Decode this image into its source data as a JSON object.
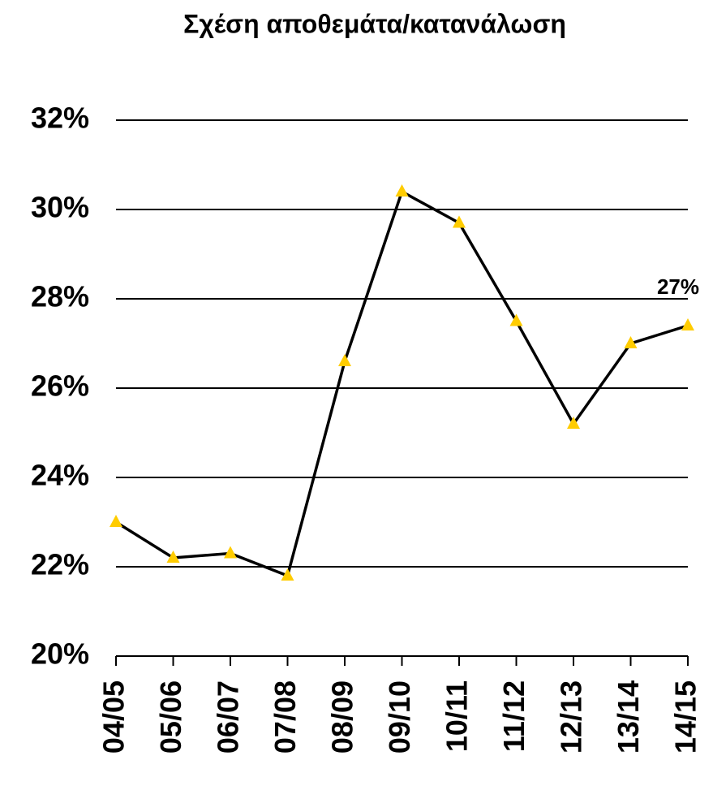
{
  "chart_data": {
    "type": "line",
    "title": "Σχέση αποθεμάτα/κατανάλωση",
    "categories": [
      "04/05",
      "05/06",
      "06/07",
      "07/08",
      "08/09",
      "09/10",
      "10/11",
      "11/12",
      "12/13",
      "13/14",
      "14/15"
    ],
    "series": [
      {
        "color": "#ffcc00",
        "values": [
          23.0,
          22.2,
          22.3,
          21.8,
          26.6,
          30.4,
          29.7,
          27.5,
          25.2,
          27.0,
          27.4
        ],
        "value_labels": [
          null,
          null,
          null,
          null,
          null,
          null,
          null,
          null,
          null,
          null,
          "27%"
        ]
      }
    ],
    "ylim": [
      20,
      32
    ],
    "yticks": [
      {
        "value": 20,
        "label": "20%"
      },
      {
        "value": 22,
        "label": "22%"
      },
      {
        "value": 24,
        "label": "24%"
      },
      {
        "value": 26,
        "label": "26%"
      },
      {
        "value": 28,
        "label": "28%"
      },
      {
        "value": 30,
        "label": "30%"
      },
      {
        "value": 32,
        "label": "32%"
      }
    ],
    "grid": true
  }
}
